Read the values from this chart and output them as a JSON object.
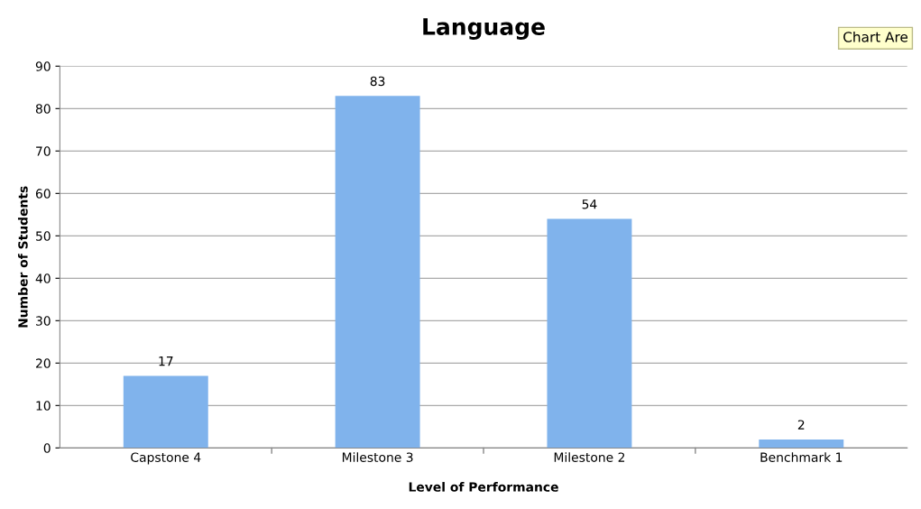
{
  "chart_data": {
    "type": "bar",
    "title": "Language",
    "xlabel": "Level of Performance",
    "ylabel": "Number of Students",
    "categories": [
      "Capstone 4",
      "Milestone 3",
      "Milestone 2",
      "Benchmark 1"
    ],
    "values": [
      17,
      83,
      54,
      2
    ],
    "color": "#80b3ec",
    "ylim": [
      0,
      90
    ],
    "yticks": [
      0,
      10,
      20,
      30,
      40,
      50,
      60,
      70,
      80,
      90
    ],
    "grid": "y",
    "data_labels": true,
    "annotations": [
      "Chart Are"
    ]
  }
}
